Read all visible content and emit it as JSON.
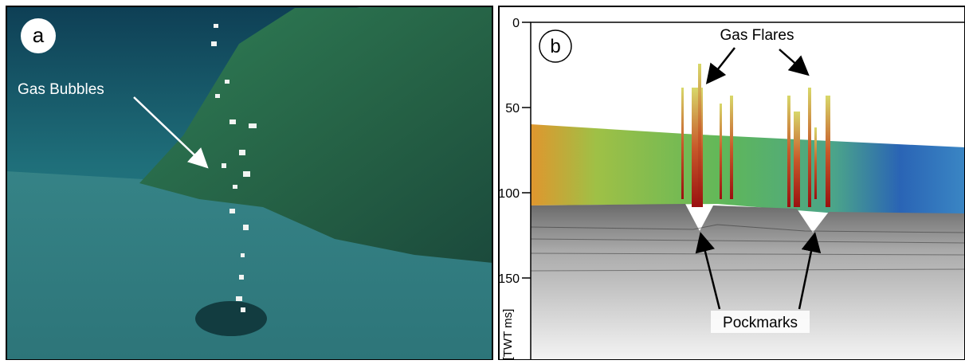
{
  "panel_a": {
    "label": "a",
    "annotation": "Gas Bubbles"
  },
  "panel_b": {
    "label": "b",
    "annotations": [
      "Gas Flares",
      "Pockmarks"
    ],
    "axis": {
      "label": "[TWT ms]",
      "ticks": [
        0,
        50,
        100,
        150
      ]
    }
  }
}
